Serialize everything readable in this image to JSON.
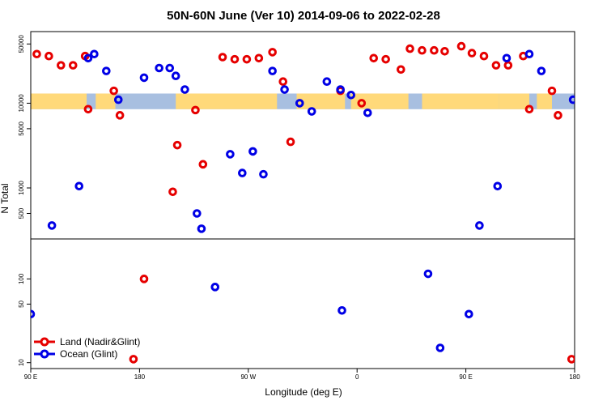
{
  "chart_data": {
    "type": "scatter",
    "title": "50N-60N June (Ver 10)   2014-09-06 to 2022-02-28",
    "xlabel": "Longitude (deg E)",
    "ylabel": "N Total",
    "x_ticks": [
      "90 E",
      "180",
      "90 W",
      "0",
      "90 E",
      "180"
    ],
    "x_range": [
      90,
      450
    ],
    "colors": {
      "land": "#e60000",
      "ocean": "#0000e6",
      "map_ocean": "#a8bfe0",
      "map_land": "#ffd97a"
    },
    "top_panel": {
      "scale": "log",
      "ylim": [
        250,
        70000
      ],
      "y_ticks": [
        "500",
        "1000",
        "5000",
        "10000",
        "50000"
      ],
      "y_tick_values": [
        500,
        1000,
        5000,
        10000,
        50000
      ],
      "map_band": [
        8500,
        13000
      ]
    },
    "bottom_panel": {
      "scale": "log",
      "ylim": [
        8.5,
        300
      ],
      "y_ticks": [
        "10",
        "50",
        "100"
      ],
      "y_tick_values": [
        10,
        50,
        100
      ]
    },
    "legend": {
      "position": "bottom-left",
      "entries": [
        {
          "label": "Land (Nadir&Glint)",
          "series": "land"
        },
        {
          "label": "Ocean (Glint)",
          "series": "ocean"
        }
      ]
    },
    "series": [
      {
        "name": "Land (Nadir&Glint)",
        "key": "land",
        "top": [
          [
            94,
            38000
          ],
          [
            102,
            36000
          ],
          [
            110,
            28000
          ],
          [
            118,
            28000
          ],
          [
            126,
            36000
          ],
          [
            128,
            8500
          ],
          [
            145,
            14000
          ],
          [
            149,
            7200
          ],
          [
            184,
            900
          ],
          [
            187,
            3200
          ],
          [
            204,
            1900
          ],
          [
            199,
            8300
          ],
          [
            217,
            35000
          ],
          [
            225,
            33000
          ],
          [
            233,
            33000
          ],
          [
            241,
            34000
          ],
          [
            250,
            40000
          ],
          [
            257,
            18000
          ],
          [
            262,
            3500
          ],
          [
            295,
            14000
          ],
          [
            309,
            10000
          ],
          [
            317,
            34000
          ],
          [
            325,
            33000
          ],
          [
            335,
            25000
          ],
          [
            341,
            44000
          ],
          [
            349,
            42000
          ],
          [
            357,
            42000
          ],
          [
            364,
            41000
          ],
          [
            375,
            47000
          ],
          [
            382,
            39000
          ],
          [
            390,
            36000
          ],
          [
            398,
            28000
          ],
          [
            406,
            28000
          ],
          [
            416,
            36000
          ],
          [
            420,
            8500
          ],
          [
            435,
            14000
          ],
          [
            439,
            7200
          ]
        ],
        "bottom": [
          [
            158,
            11
          ],
          [
            165,
            100
          ],
          [
            448,
            11
          ]
        ]
      },
      {
        "name": "Ocean (Glint)",
        "key": "ocean",
        "top": [
          [
            104,
            360
          ],
          [
            122,
            1050
          ],
          [
            128,
            34000
          ],
          [
            132,
            38000
          ],
          [
            140,
            24000
          ],
          [
            148,
            11000
          ],
          [
            165,
            20000
          ],
          [
            175,
            26000
          ],
          [
            182,
            26000
          ],
          [
            186,
            21000
          ],
          [
            192,
            14500
          ],
          [
            200,
            500
          ],
          [
            203,
            330
          ],
          [
            222,
            2500
          ],
          [
            230,
            1500
          ],
          [
            237,
            2700
          ],
          [
            244,
            1450
          ],
          [
            250,
            24000
          ],
          [
            258,
            14500
          ],
          [
            268,
            10000
          ],
          [
            276,
            8000
          ],
          [
            286,
            18000
          ],
          [
            295,
            14500
          ],
          [
            302,
            12500
          ],
          [
            313,
            7700
          ],
          [
            399,
            1050
          ],
          [
            405,
            34000
          ],
          [
            420,
            38000
          ],
          [
            428,
            24000
          ],
          [
            449,
            11000
          ],
          [
            387,
            360
          ]
        ],
        "bottom": [
          [
            90,
            38
          ],
          [
            212,
            80
          ],
          [
            296,
            42
          ],
          [
            353,
            115
          ],
          [
            361,
            15
          ],
          [
            380,
            38
          ]
        ]
      }
    ]
  }
}
